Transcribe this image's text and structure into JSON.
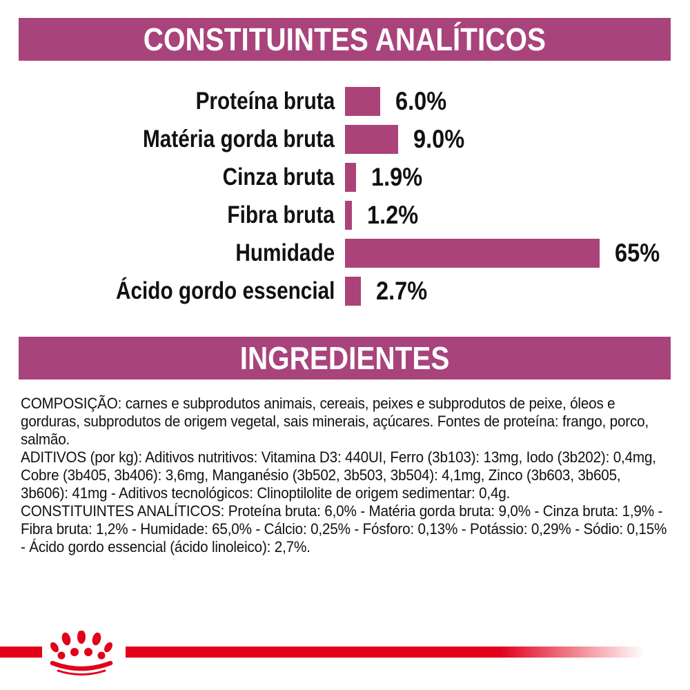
{
  "section_analytical": {
    "title": "CONSTITUINTES ANALÍTICOS"
  },
  "section_ingredients": {
    "title": "INGREDIENTES"
  },
  "chart_data": {
    "type": "bar",
    "orientation": "horizontal",
    "categories": [
      "Proteína bruta",
      "Matéria gorda bruta",
      "Cinza bruta",
      "Fibra bruta",
      "Humidade",
      "Ácido gordo essencial"
    ],
    "values": [
      6.0,
      9.0,
      1.9,
      1.2,
      65.0,
      2.7
    ],
    "value_labels": [
      "6.0%",
      "9.0%",
      "1.9%",
      "1.2%",
      "65%",
      "2.7%"
    ],
    "title": "CONSTITUINTES ANALÍTICOS",
    "xlabel": "",
    "ylabel": "",
    "xlim": [
      0,
      65
    ],
    "grid": false,
    "bar_color": "#ab4379"
  },
  "paragraphs": {
    "composicao": "COMPOSIÇÃO: carnes e subprodutos animais, cereais, peixes e subprodutos de peixe, óleos e gorduras, subprodutos de origem vegetal, sais minerais, açúcares. Fontes de proteína: frango, porco, salmão.",
    "aditivos": "ADITIVOS (por kg): Aditivos nutritivos: Vitamina D3: 440UI, Ferro (3b103): 13mg, Iodo (3b202): 0,4mg, Cobre (3b405, 3b406): 3,6mg, Manganésio (3b502, 3b503, 3b504): 4,1mg, Zinco (3b603, 3b605, 3b606): 41mg - Aditivos tecnológicos: Clinoptilolite de origem sedimentar: 0,4g.",
    "constituintes": "CONSTITUINTES ANALÍTICOS: Proteína bruta: 6,0% - Matéria gorda bruta: 9,0% - Cinza bruta: 1,9% - Fibra bruta: 1,2% - Humidade: 65,0% - Cálcio: 0,25% - Fósforo: 0,13% - Potássio: 0,29% - Sódio: 0,15% - Ácido gordo essencial (ácido linoleico): 2,7%."
  },
  "footer": {
    "logo": "royal-canin-crown-logo",
    "stripe_color": "#e2001a"
  },
  "colors": {
    "banner_magenta": "#a9437b",
    "bar_magenta": "#ab4379",
    "brand_red": "#e2001a",
    "text_black": "#111111",
    "background": "#ffffff"
  }
}
